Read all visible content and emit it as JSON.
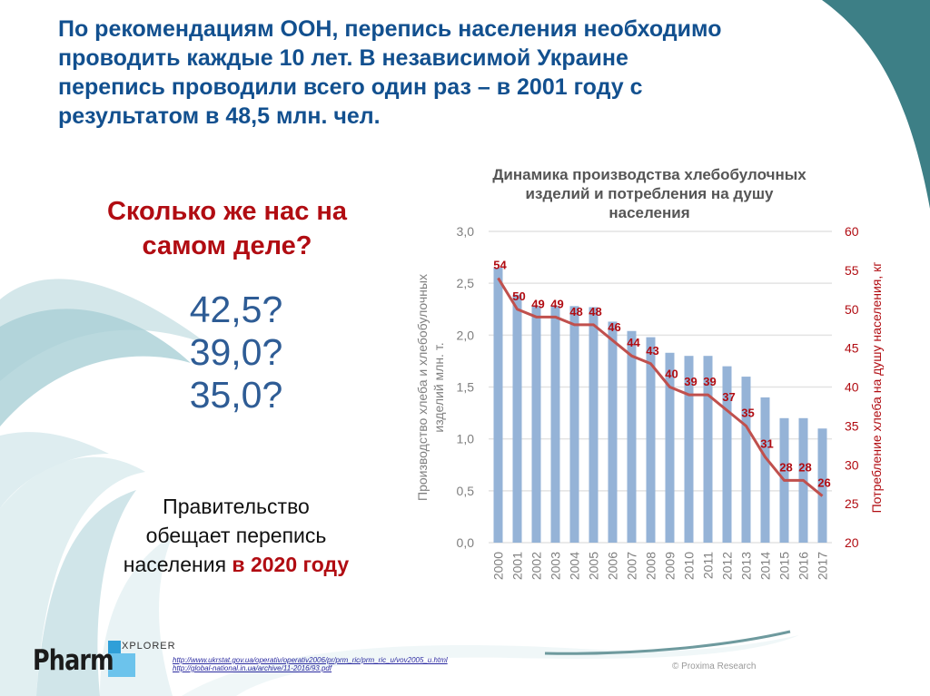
{
  "slide": {
    "headline": "По рекомендациям ООН, перепись населения необходимо проводить каждые 10 лет. В независимой Украине перепись проводили всего один раз – в 2001 году с результатом в 48,5 млн. чел.",
    "headline_lines": [
      "По рекомендациям ООН, перепись населения необходимо",
      "проводить каждые 10 лет. В независимой Украине",
      "перепись проводили всего один раз – в 2001 году с",
      "результатом в 48,5 млн. чел."
    ],
    "question_lines": [
      "Сколько же нас на",
      "самом деле?"
    ],
    "guesses": [
      "42,5?",
      "39,0?",
      "35,0?"
    ],
    "promise": {
      "line1": "Правительство",
      "line2": "обещает перепись",
      "line3_plain": "населения ",
      "line3_highlight": "в 2020 году"
    },
    "sources": [
      "http://www.ukrstat.gov.ua/operativ/operativ2006/pr/prm_ric/prm_ric_u/vov2005_u.html",
      "http://global-national.in.ua/archive/11-2016/93.pdf"
    ],
    "copyright": "© Proxima Research",
    "logo": {
      "main": "Pharm",
      "sub": "XPLORER"
    }
  },
  "colors": {
    "headline": "#12508f",
    "question": "#b10c12",
    "guesses": "#2e5c95",
    "bars": "#95b3d7",
    "line": "#c0504d",
    "line_labels": "#b10c12",
    "right_axis": "#b10c12",
    "left_axis": "#7f7f7f",
    "gridline": "#e3e3e3",
    "corner": "#3d7f86"
  },
  "chart_data": {
    "type": "bar",
    "title": "Динамика производства хлебобулочных изделий и потребления на душу населения",
    "title_lines": [
      "Динамика производства хлебобулочных",
      "изделий и потребления на душу",
      "населения"
    ],
    "categories": [
      "2000",
      "2001",
      "2002",
      "2003",
      "2004",
      "2005",
      "2006",
      "2007",
      "2008",
      "2009",
      "2010",
      "2011",
      "2012",
      "2013",
      "2014",
      "2015",
      "2016",
      "2017"
    ],
    "series": [
      {
        "name": "Производство хлеба и хлебобулочных изделий млн. т.",
        "type": "bar",
        "axis": "left",
        "values": [
          2.65,
          2.39,
          2.28,
          2.28,
          2.28,
          2.27,
          2.13,
          2.04,
          1.98,
          1.83,
          1.8,
          1.8,
          1.7,
          1.6,
          1.4,
          1.2,
          1.2,
          1.1
        ]
      },
      {
        "name": "Потребление хлеба на душу населения, кг",
        "type": "line",
        "axis": "right",
        "values": [
          54,
          50,
          49,
          49,
          48,
          48,
          46,
          44,
          43,
          40,
          39,
          39,
          37,
          35,
          31,
          28,
          28,
          26
        ],
        "data_labels": true
      }
    ],
    "ylabel": "Производство хлеба и хлебобулочных изделий млн. т.",
    "ylabel_lines": [
      "Производство хлеба и хлебобулочных",
      "изделий млн. т."
    ],
    "y2label": "Потребление хлеба на душу населения, кг",
    "ylim": [
      0,
      3.0
    ],
    "y_ticks": [
      "0,0",
      "0,5",
      "1,0",
      "1,5",
      "2,0",
      "2,5",
      "3,0"
    ],
    "y2lim": [
      20,
      60
    ],
    "y2_ticks": [
      "20",
      "25",
      "30",
      "35",
      "40",
      "45",
      "50",
      "55",
      "60"
    ],
    "xlabel": "",
    "grid": true,
    "legend": "none"
  }
}
